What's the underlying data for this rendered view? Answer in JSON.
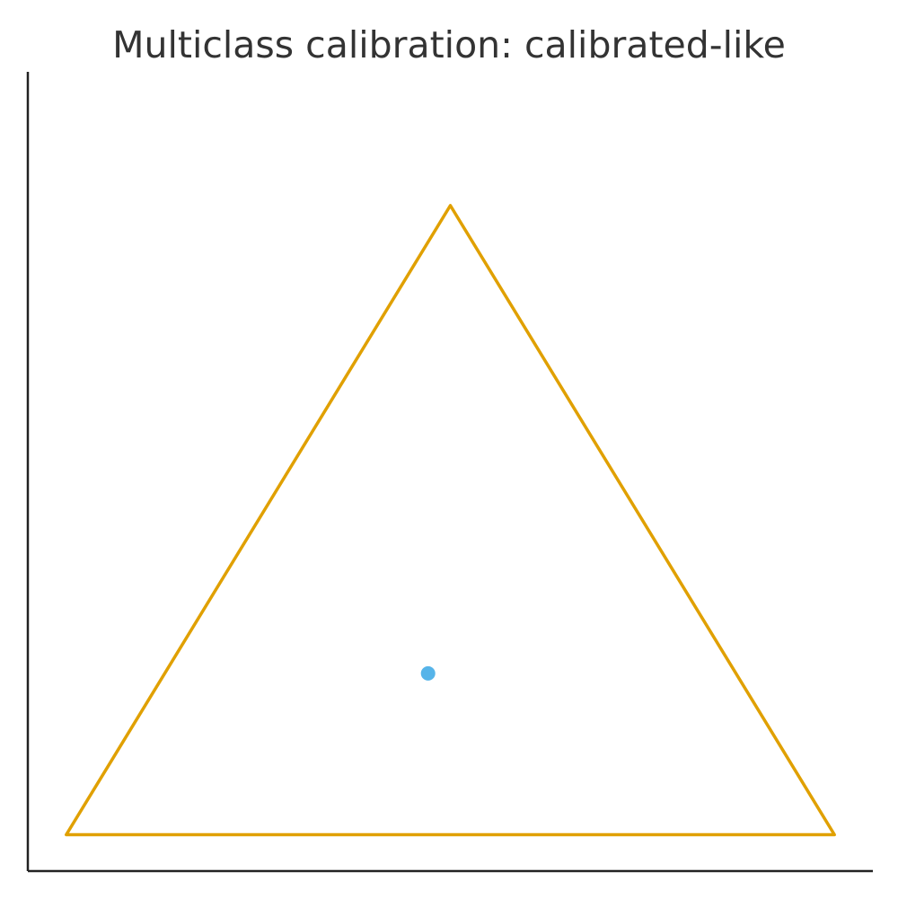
{
  "chart_data": {
    "type": "scatter",
    "title": "Multiclass calibration: calibrated-like",
    "xlabel": "",
    "ylabel": "",
    "grid": false,
    "xlim": [
      -0.05,
      1.05
    ],
    "ylim": [
      -0.05,
      1.05
    ],
    "simplex": {
      "vertices": [
        {
          "x": 0.0,
          "y": 0.0
        },
        {
          "x": 1.0,
          "y": 0.0
        },
        {
          "x": 0.5,
          "y": 0.866
        }
      ],
      "color": "#E0A000"
    },
    "series": [
      {
        "points": [
          {
            "x": 0.471,
            "y": 0.222
          }
        ],
        "color": "#56B4E9"
      }
    ]
  }
}
